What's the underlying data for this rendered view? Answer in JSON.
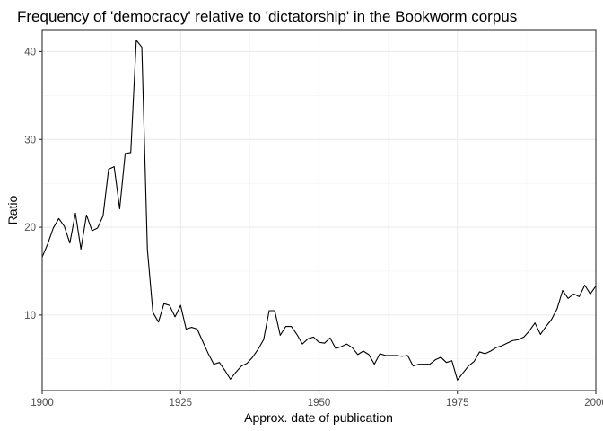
{
  "chart_data": {
    "type": "line",
    "title": "Frequency of 'democracy' relative to 'dictatorship' in the Bookworm corpus",
    "xlabel": "Approx. date of publication",
    "ylabel": "Ratio",
    "xlim": [
      1900,
      2000
    ],
    "ylim": [
      1.4,
      42.5
    ],
    "x_ticks": [
      1900,
      1925,
      1950,
      1975,
      2000
    ],
    "y_ticks": [
      10,
      20,
      30,
      40
    ],
    "grid": true,
    "series": [
      {
        "color": "#000000",
        "x": [
          1900,
          1901,
          1902,
          1903,
          1904,
          1905,
          1906,
          1907,
          1908,
          1909,
          1910,
          1911,
          1912,
          1913,
          1914,
          1915,
          1916,
          1917,
          1918,
          1919,
          1920,
          1921,
          1922,
          1923,
          1924,
          1925,
          1926,
          1927,
          1928,
          1929,
          1930,
          1931,
          1932,
          1933,
          1934,
          1935,
          1936,
          1937,
          1938,
          1939,
          1940,
          1941,
          1942,
          1943,
          1944,
          1945,
          1946,
          1947,
          1948,
          1949,
          1950,
          1951,
          1952,
          1953,
          1954,
          1955,
          1956,
          1957,
          1958,
          1959,
          1960,
          1961,
          1962,
          1963,
          1964,
          1965,
          1966,
          1967,
          1968,
          1969,
          1970,
          1971,
          1972,
          1973,
          1974,
          1975,
          1976,
          1977,
          1978,
          1979,
          1980,
          1981,
          1982,
          1983,
          1984,
          1985,
          1986,
          1987,
          1988,
          1989,
          1990,
          1991,
          1992,
          1993,
          1994,
          1995,
          1996,
          1997,
          1998,
          1999,
          2000
        ],
        "y": [
          16.6,
          18.1,
          19.9,
          21.0,
          20.1,
          18.2,
          21.6,
          17.5,
          21.4,
          19.6,
          19.9,
          21.3,
          26.6,
          26.9,
          22.1,
          28.4,
          28.5,
          41.3,
          40.5,
          17.5,
          10.3,
          9.2,
          11.3,
          11.1,
          9.8,
          11.1,
          8.4,
          8.6,
          8.4,
          7.0,
          5.6,
          4.4,
          4.6,
          3.7,
          2.7,
          3.5,
          4.2,
          4.5,
          5.2,
          6.1,
          7.2,
          10.5,
          10.5,
          7.7,
          8.7,
          8.7,
          7.8,
          6.7,
          7.3,
          7.5,
          6.9,
          6.8,
          7.4,
          6.2,
          6.4,
          6.7,
          6.3,
          5.5,
          5.9,
          5.5,
          4.4,
          5.6,
          5.4,
          5.4,
          5.4,
          5.3,
          5.4,
          4.2,
          4.4,
          4.4,
          4.4,
          4.9,
          5.2,
          4.6,
          4.8,
          2.6,
          3.4,
          4.2,
          4.7,
          5.8,
          5.6,
          5.9,
          6.3,
          6.5,
          6.8,
          7.1,
          7.2,
          7.5,
          8.2,
          9.1,
          7.8,
          8.7,
          9.5,
          10.7,
          12.8,
          11.9,
          12.4,
          12.1,
          13.4,
          12.4,
          13.3
        ]
      }
    ]
  }
}
